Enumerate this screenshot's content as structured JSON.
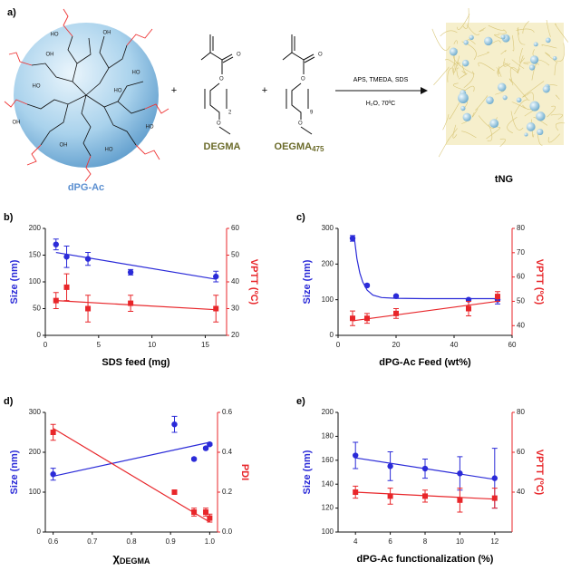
{
  "scheme": {
    "panel_label": "a)",
    "core_label": "dPG-Ac",
    "core_groups": [
      "HO",
      "OH",
      "HO",
      "HO",
      "OH",
      "HO",
      "OH",
      "HO",
      "OH",
      "HO"
    ],
    "plus": [
      "+",
      "+"
    ],
    "monomer1": {
      "name": "DEGMA",
      "atoms": [
        "O",
        "O",
        "O"
      ],
      "repeat": "2"
    },
    "monomer2": {
      "name": "OEGMA",
      "name_sub": "475",
      "atoms": [
        "O",
        "O",
        "O"
      ],
      "repeat": "9"
    },
    "conditions_top": "APS, TMEDA, SDS",
    "conditions_bottom": "H₂O, 70ºC",
    "product_label": "tNG"
  },
  "chart_data": [
    {
      "type": "scatter",
      "panel_label": "b)",
      "xlabel": "SDS feed (mg)",
      "ylabel": "Size (nm)",
      "y2label": "VPTT (ºC)",
      "x": [
        1,
        2,
        4,
        8,
        16
      ],
      "xlim": [
        0,
        17
      ],
      "xticks": [
        0,
        5,
        10,
        15
      ],
      "ylim": [
        0,
        200
      ],
      "yticks": [
        0,
        50,
        100,
        150,
        200
      ],
      "y2lim": [
        20,
        60
      ],
      "y2ticks": [
        20,
        30,
        40,
        50,
        60
      ],
      "series": [
        {
          "color": "#2b2bd8",
          "marker": "circle",
          "values": [
            170,
            147,
            143,
            118,
            110
          ],
          "errors": [
            10,
            20,
            12,
            5,
            10
          ],
          "fit": {
            "x": [
              1,
              16
            ],
            "y": [
              155,
              105
            ]
          }
        },
        {
          "color": "#e8262a",
          "marker": "square",
          "axis": "y2",
          "values": [
            33,
            38,
            30,
            32,
            30
          ],
          "errors": [
            3,
            5,
            5,
            3,
            5
          ],
          "fit": {
            "x": [
              1,
              16
            ],
            "y": [
              33,
              29.6
            ]
          }
        }
      ]
    },
    {
      "type": "scatter",
      "panel_label": "c)",
      "xlabel": "dPG-Ac Feed (wt%)",
      "ylabel": "Size (nm)",
      "y2label": "VPTT (ºC)",
      "x": [
        5,
        10,
        20,
        45,
        55
      ],
      "xlim": [
        0,
        60
      ],
      "xticks": [
        0,
        20,
        40,
        60
      ],
      "ylim": [
        0,
        300
      ],
      "yticks": [
        0,
        100,
        200,
        300
      ],
      "y2lim": [
        36,
        80
      ],
      "y2ticks": [
        40,
        50,
        60,
        70,
        80
      ],
      "series": [
        {
          "color": "#2b2bd8",
          "marker": "circle",
          "values": [
            272,
            140,
            110,
            100,
            100
          ],
          "errors": [
            8,
            3,
            3,
            3,
            12
          ],
          "fit": {
            "x": [
              5.5,
              6.5,
              7.5,
              8.5,
              10,
              12,
              15,
              20,
              30,
              55
            ],
            "y": [
              280,
              215,
              175,
              150,
              127,
              113,
              106,
              104,
              103,
              103
            ]
          }
        },
        {
          "color": "#e8262a",
          "marker": "square",
          "axis": "y2",
          "values": [
            43,
            43,
            45,
            47,
            52
          ],
          "errors": [
            3,
            2,
            2,
            3,
            2
          ],
          "fit": {
            "x": [
              5,
              55
            ],
            "y": [
              42,
              50
            ]
          }
        }
      ]
    },
    {
      "type": "scatter",
      "panel_label": "d)",
      "xlabel": {
        "main": "χ",
        "sub": "DEGMA"
      },
      "ylabel": "Size (nm)",
      "y2label": "PDI",
      "x": [
        0.6,
        0.91,
        0.96,
        0.99,
        1.0
      ],
      "xlim": [
        0.58,
        1.02
      ],
      "xticks": [
        0.6,
        0.7,
        0.8,
        0.9,
        {
          "value": 1,
          "label": "1.0"
        }
      ],
      "ylim": [
        0,
        300
      ],
      "yticks": [
        0,
        100,
        200,
        300
      ],
      "y2lim": [
        0,
        0.6
      ],
      "y2ticks": [
        {
          "value": 0,
          "label": "0.0"
        },
        0.2,
        0.4,
        0.6
      ],
      "series": [
        {
          "color": "#2b2bd8",
          "marker": "circle",
          "values": [
            145,
            270,
            183,
            210,
            220
          ],
          "errors": [
            15,
            20,
            3,
            3,
            3
          ],
          "fit": {
            "x": [
              0.6,
              1.0
            ],
            "y": [
              140,
              225
            ]
          }
        },
        {
          "color": "#e8262a",
          "marker": "square",
          "axis": "y2",
          "values": [
            0.5,
            0.2,
            0.1,
            0.1,
            0.07
          ],
          "errors": [
            0.04,
            0.005,
            0.02,
            0.02,
            0.02
          ],
          "fit": {
            "x": [
              0.6,
              1.0
            ],
            "y": [
              0.52,
              0.05
            ]
          }
        }
      ]
    },
    {
      "type": "scatter",
      "panel_label": "e)",
      "xlabel": "dPG-Ac functionalization (%)",
      "ylabel": "Size (nm)",
      "y2label": "VPTT (ºC)",
      "x": [
        4,
        6,
        8,
        10,
        12
      ],
      "xlim": [
        3,
        13
      ],
      "xticks": [
        4,
        6,
        8,
        10,
        12
      ],
      "ylim": [
        100,
        200
      ],
      "yticks": [
        100,
        120,
        140,
        160,
        180,
        200
      ],
      "y2lim": [
        20,
        80
      ],
      "y2ticks": [
        40,
        60,
        80
      ],
      "series": [
        {
          "color": "#2b2bd8",
          "marker": "circle",
          "values": [
            164,
            155,
            153,
            149,
            145
          ],
          "errors": [
            11,
            12,
            8,
            14,
            25
          ],
          "fit": {
            "x": [
              4,
              12
            ],
            "y": [
              162,
              144
            ]
          }
        },
        {
          "color": "#e8262a",
          "marker": "square",
          "axis": "y2",
          "values": [
            40,
            38,
            38,
            36,
            37
          ],
          "errors": [
            3,
            4,
            3,
            6,
            5
          ],
          "fit": {
            "x": [
              4,
              12
            ],
            "y": [
              40,
              36.5
            ]
          }
        }
      ]
    }
  ]
}
